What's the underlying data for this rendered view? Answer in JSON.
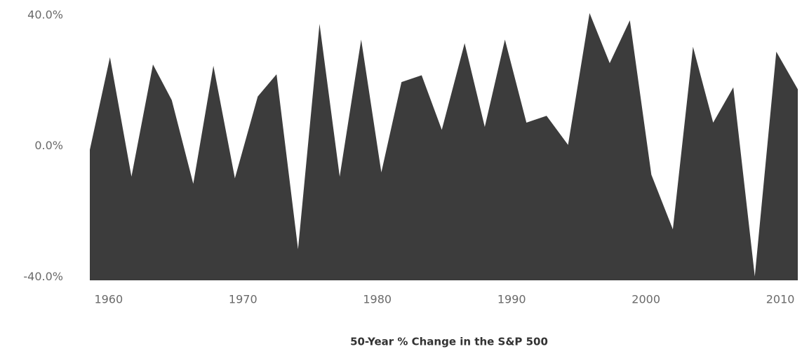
{
  "chart_data": {
    "type": "area",
    "title": "50-Year % Change in the S&P 500",
    "x": [
      1958.6,
      1960.1,
      1961.7,
      1963.3,
      1964.7,
      1966.3,
      1967.8,
      1969.4,
      1971.1,
      1972.5,
      1974.1,
      1975.7,
      1977.2,
      1978.8,
      1980.3,
      1981.8,
      1983.3,
      1984.8,
      1986.5,
      1988.0,
      1989.5,
      1991.1,
      1992.6,
      1994.2,
      1995.8,
      1997.3,
      1998.8,
      2000.4,
      2002.0,
      2003.5,
      2005.0,
      2006.5,
      2008.1,
      2009.7,
      2011.3
    ],
    "values": [
      -1.1,
      27.2,
      -9.3,
      25.0,
      14.1,
      -11.5,
      24.6,
      -9.8,
      15.2,
      22.0,
      -31.5,
      37.4,
      -9.3,
      32.6,
      -8.0,
      19.6,
      21.7,
      5.0,
      31.5,
      5.9,
      32.6,
      7.2,
      9.3,
      0.4,
      40.7,
      25.4,
      38.5,
      -8.7,
      -25.4,
      30.4,
      7.2,
      18.0,
      -39.8,
      28.9,
      17.4
    ],
    "color": "#3c3c3c",
    "xlim": [
      1958.6,
      2011.3
    ],
    "xticks": [
      1960,
      1970,
      1980,
      1990,
      2000,
      2010
    ],
    "ylim": [
      -41,
      44.7
    ],
    "yticks": [
      {
        "value": 40,
        "label": "40.0%"
      },
      {
        "value": 0,
        "label": "0.0%"
      },
      {
        "value": -40,
        "label": "-40.0%"
      }
    ],
    "grid": false
  }
}
